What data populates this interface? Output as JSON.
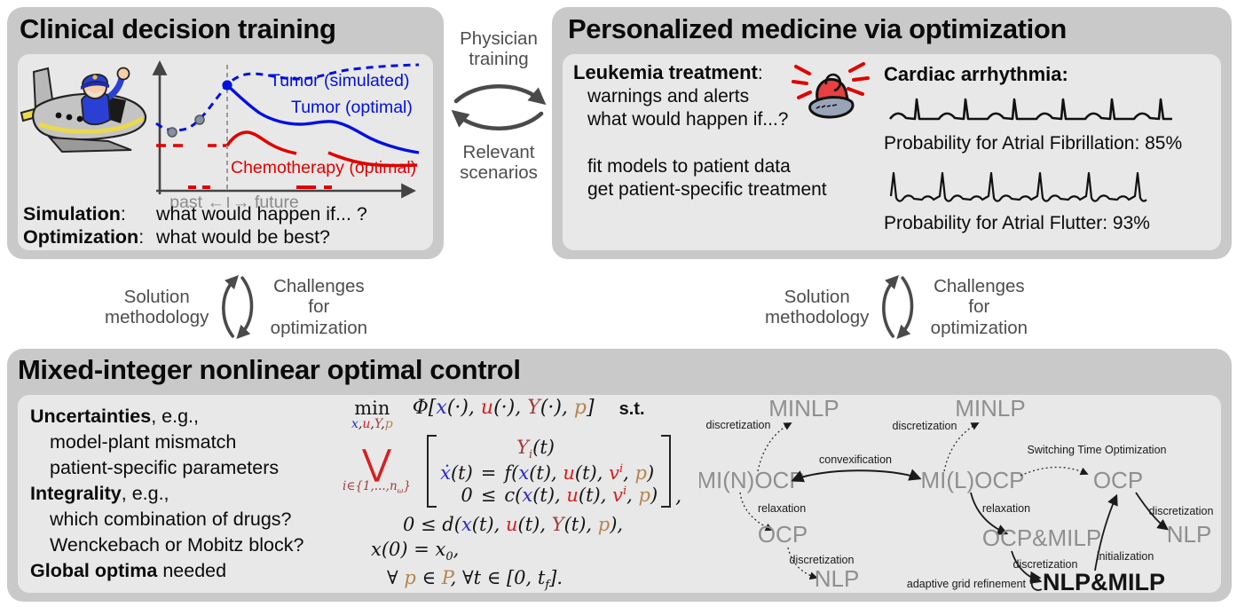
{
  "clinical": {
    "title": "Clinical decision training",
    "graph": {
      "tumor_simulated": "Tumor (simulated)",
      "tumor_optimal": "Tumor (optimal)",
      "chemotherapy": "Chemotherapy (optimal)",
      "past": "past ←",
      "future": "→ future",
      "colors": {
        "tumor": "#0010dd",
        "chemo": "#e00000",
        "axis": "#444444"
      }
    },
    "qa": [
      {
        "term": "Simulation",
        "colon": ":",
        "text": "what would happen if... ?"
      },
      {
        "term": "Optimization",
        "colon": ":",
        "text": "what would be best?"
      }
    ]
  },
  "connector_top": {
    "upper": "Physician training",
    "lower": "Relevant scenarios"
  },
  "connector_cycle": {
    "left": "Solution methodology",
    "right": "Challenges for optimization"
  },
  "personalized": {
    "title": "Personalized medicine via optimization",
    "leukemia": {
      "heading": "Leukemia treatment",
      "colon": ":",
      "group1": [
        "warnings and alerts",
        "what would happen if...?"
      ],
      "group2": [
        "fit models to patient data",
        "get patient-specific treatment"
      ]
    },
    "cardiac": {
      "heading": "Cardiac arrhythmia:",
      "caption1": "Probability for Atrial Fibrillation: 85%",
      "caption2": "Probability for Atrial Flutter: 93%"
    }
  },
  "mioc": {
    "title": "Mixed-integer nonlinear optimal control",
    "notes": [
      {
        "b": "Uncertainties",
        "r": ", e.g.,"
      },
      {
        "b": "",
        "r": "model-plant mismatch"
      },
      {
        "b": "",
        "r": "patient-specific parameters"
      },
      {
        "b": "Integrality",
        "r": ", e.g.,"
      },
      {
        "b": "",
        "r": "which combination of drugs?"
      },
      {
        "b": "",
        "r": "Wenckebach or Mobitz block?"
      },
      {
        "b": "Global optima",
        "r": " needed"
      }
    ],
    "math": {
      "min": "min",
      "min_sub": [
        {
          "t": "x",
          "c": "blue"
        },
        {
          "t": ",",
          "c": "k"
        },
        {
          "t": "u",
          "c": "red"
        },
        {
          "t": ",",
          "c": "k"
        },
        {
          "t": "Y",
          "c": "brick"
        },
        {
          "t": ",",
          "c": "k"
        },
        {
          "t": "p",
          "c": "tan"
        }
      ],
      "objective": [
        {
          "t": "Φ[",
          "c": "k"
        },
        {
          "t": "x",
          "c": "blue"
        },
        {
          "t": "(·), ",
          "c": "k"
        },
        {
          "t": "u",
          "c": "red"
        },
        {
          "t": "(·), ",
          "c": "k"
        },
        {
          "t": "Y",
          "c": "brick"
        },
        {
          "t": "(·), ",
          "c": "k"
        },
        {
          "t": "p",
          "c": "tan"
        },
        {
          "t": "]",
          "c": "k"
        }
      ],
      "st": "s.t.",
      "vee": "⋁",
      "vee_sub": [
        {
          "t": "i",
          "c": "brick"
        },
        {
          "t": "∈{1,...,",
          "c": "brick"
        },
        {
          "t": "n",
          "c": "brick"
        },
        {
          "t": "ω",
          "c": "brick",
          "v": "sub"
        },
        {
          "t": "}",
          "c": "brick"
        }
      ],
      "row1": [
        {
          "t": "Y",
          "c": "brick"
        },
        {
          "t": "i",
          "c": "brick",
          "v": "sub"
        },
        {
          "t": "(t)",
          "c": "k"
        }
      ],
      "row2_l": [
        {
          "t": "ẋ",
          "c": "blue"
        },
        {
          "t": "(t)",
          "c": "k"
        }
      ],
      "row2_o": [
        {
          "t": "=",
          "c": "k"
        }
      ],
      "row2_r": [
        {
          "t": "f(",
          "c": "k"
        },
        {
          "t": "x",
          "c": "blue"
        },
        {
          "t": "(t), ",
          "c": "k"
        },
        {
          "t": "u",
          "c": "red"
        },
        {
          "t": "(t), ",
          "c": "k"
        },
        {
          "t": "v",
          "c": "red"
        },
        {
          "t": "i",
          "c": "red",
          "v": "sup"
        },
        {
          "t": ", ",
          "c": "k"
        },
        {
          "t": "p",
          "c": "tan"
        },
        {
          "t": ")",
          "c": "k"
        }
      ],
      "row3_l": [
        {
          "t": "0",
          "c": "k"
        }
      ],
      "row3_o": [
        {
          "t": "≤",
          "c": "k"
        }
      ],
      "row3_r": [
        {
          "t": "c(",
          "c": "k"
        },
        {
          "t": "x",
          "c": "blue"
        },
        {
          "t": "(t), ",
          "c": "k"
        },
        {
          "t": "u",
          "c": "red"
        },
        {
          "t": "(t), ",
          "c": "k"
        },
        {
          "t": "v",
          "c": "red"
        },
        {
          "t": "i",
          "c": "red",
          "v": "sup"
        },
        {
          "t": ", ",
          "c": "k"
        },
        {
          "t": "p",
          "c": "tan"
        },
        {
          "t": ")",
          "c": "k"
        }
      ],
      "comma": ",",
      "line3": [
        {
          "t": "0 ≤ d(",
          "c": "k"
        },
        {
          "t": "x",
          "c": "blue"
        },
        {
          "t": "(t), ",
          "c": "k"
        },
        {
          "t": "u",
          "c": "red"
        },
        {
          "t": "(t), ",
          "c": "k"
        },
        {
          "t": "Y",
          "c": "brick"
        },
        {
          "t": "(t), ",
          "c": "k"
        },
        {
          "t": "p",
          "c": "tan"
        },
        {
          "t": "),",
          "c": "k"
        }
      ],
      "line4": [
        {
          "t": "x(0) = x",
          "c": "k"
        },
        {
          "t": "0",
          "c": "k",
          "v": "sub"
        },
        {
          "t": ",",
          "c": "k"
        }
      ],
      "line5": [
        {
          "t": "∀ ",
          "c": "k"
        },
        {
          "t": "p",
          "c": "tan"
        },
        {
          "t": " ∈ ",
          "c": "k"
        },
        {
          "t": "P",
          "c": "tan"
        },
        {
          "t": ",    ∀t ∈ [0, t",
          "c": "k"
        },
        {
          "t": "f",
          "c": "k",
          "v": "sub"
        },
        {
          "t": "].",
          "c": "k"
        }
      ]
    },
    "flow": {
      "left": {
        "minlp": "MINLP",
        "minocp": "MI(N)OCP",
        "ocp": "OCP",
        "nlp": "NLP",
        "discretization1": "discretization",
        "relaxation": "relaxation",
        "discretization2": "discretization",
        "convexification": "convexification"
      },
      "right": {
        "minlp": "MINLP",
        "milocp": "MI(L)OCP",
        "ocp": "OCP",
        "nlp": "NLP",
        "ocpmilp": "OCP&MILP",
        "nlpmilp": "NLP&MILP",
        "discretization1": "discretization",
        "sto": "Switching Time Optimization",
        "relaxation": "relaxation",
        "discretization2": "discretization",
        "initialization": "initialization",
        "discretization3": "discretization",
        "agr": "adaptive grid refinement"
      }
    }
  }
}
